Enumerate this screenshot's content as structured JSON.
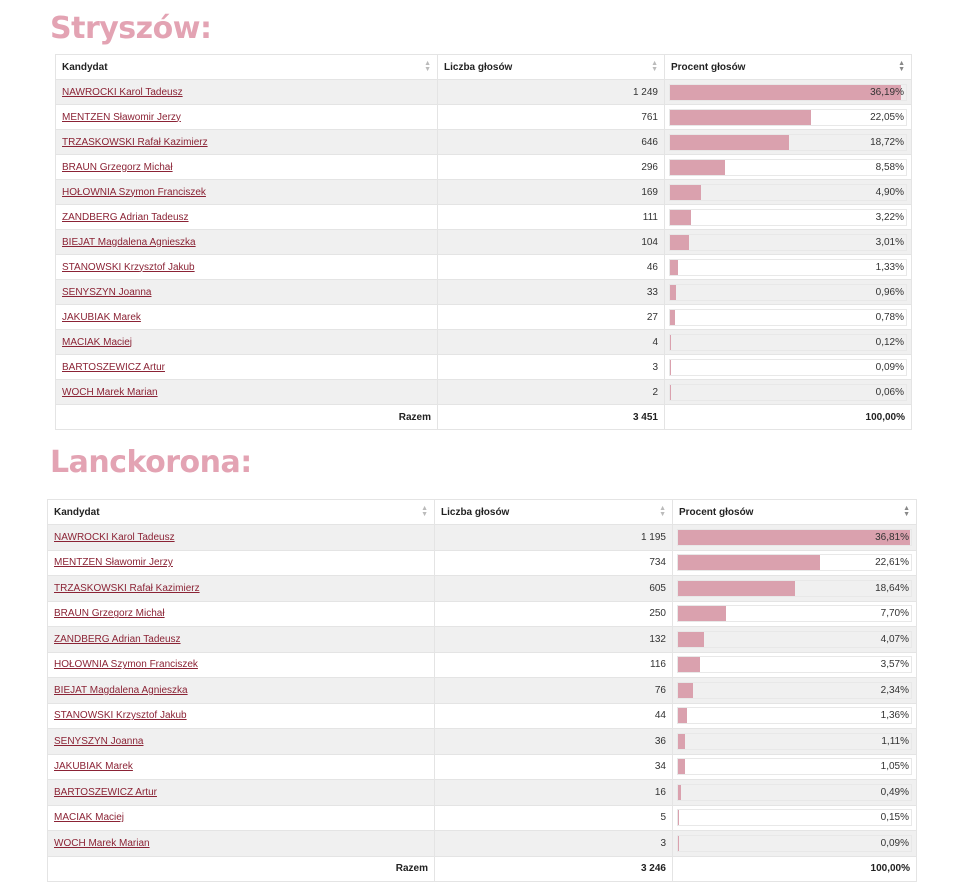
{
  "accent_color": "#e3a3b3",
  "bar_color": "#daa1ae",
  "columns": [
    "Kandydat",
    "Liczba głosów",
    "Procent głosów"
  ],
  "total_label": "Razem",
  "sections": [
    {
      "title": "Stryszów:",
      "rows": [
        {
          "name": "NAWROCKI Karol Tadeusz",
          "votes": "1 249",
          "percent": "36,19%",
          "value": 36.19
        },
        {
          "name": "MENTZEN Sławomir Jerzy",
          "votes": "761",
          "percent": "22,05%",
          "value": 22.05
        },
        {
          "name": "TRZASKOWSKI Rafał Kazimierz",
          "votes": "646",
          "percent": "18,72%",
          "value": 18.72
        },
        {
          "name": "BRAUN Grzegorz Michał",
          "votes": "296",
          "percent": "8,58%",
          "value": 8.58
        },
        {
          "name": "HOŁOWNIA Szymon Franciszek",
          "votes": "169",
          "percent": "4,90%",
          "value": 4.9
        },
        {
          "name": "ZANDBERG Adrian Tadeusz",
          "votes": "111",
          "percent": "3,22%",
          "value": 3.22
        },
        {
          "name": "BIEJAT Magdalena Agnieszka",
          "votes": "104",
          "percent": "3,01%",
          "value": 3.01
        },
        {
          "name": "STANOWSKI Krzysztof Jakub",
          "votes": "46",
          "percent": "1,33%",
          "value": 1.33
        },
        {
          "name": "SENYSZYN Joanna",
          "votes": "33",
          "percent": "0,96%",
          "value": 0.96
        },
        {
          "name": "JAKUBIAK Marek",
          "votes": "27",
          "percent": "0,78%",
          "value": 0.78
        },
        {
          "name": "MACIAK Maciej",
          "votes": "4",
          "percent": "0,12%",
          "value": 0.12
        },
        {
          "name": "BARTOSZEWICZ Artur",
          "votes": "3",
          "percent": "0,09%",
          "value": 0.09
        },
        {
          "name": "WOCH Marek Marian",
          "votes": "2",
          "percent": "0,06%",
          "value": 0.06
        }
      ],
      "total_votes": "3 451",
      "total_percent": "100,00%"
    },
    {
      "title": "Lanckorona:",
      "rows": [
        {
          "name": "NAWROCKI Karol Tadeusz",
          "votes": "1 195",
          "percent": "36,81%",
          "value": 36.81
        },
        {
          "name": "MENTZEN Sławomir Jerzy",
          "votes": "734",
          "percent": "22,61%",
          "value": 22.61
        },
        {
          "name": "TRZASKOWSKI Rafał Kazimierz",
          "votes": "605",
          "percent": "18,64%",
          "value": 18.64
        },
        {
          "name": "BRAUN Grzegorz Michał",
          "votes": "250",
          "percent": "7,70%",
          "value": 7.7
        },
        {
          "name": "ZANDBERG Adrian Tadeusz",
          "votes": "132",
          "percent": "4,07%",
          "value": 4.07
        },
        {
          "name": "HOŁOWNIA Szymon Franciszek",
          "votes": "116",
          "percent": "3,57%",
          "value": 3.57
        },
        {
          "name": "BIEJAT Magdalena Agnieszka",
          "votes": "76",
          "percent": "2,34%",
          "value": 2.34
        },
        {
          "name": "STANOWSKI Krzysztof Jakub",
          "votes": "44",
          "percent": "1,36%",
          "value": 1.36
        },
        {
          "name": "SENYSZYN Joanna",
          "votes": "36",
          "percent": "1,11%",
          "value": 1.11
        },
        {
          "name": "JAKUBIAK Marek",
          "votes": "34",
          "percent": "1,05%",
          "value": 1.05
        },
        {
          "name": "BARTOSZEWICZ Artur",
          "votes": "16",
          "percent": "0,49%",
          "value": 0.49
        },
        {
          "name": "MACIAK Maciej",
          "votes": "5",
          "percent": "0,15%",
          "value": 0.15
        },
        {
          "name": "WOCH Marek Marian",
          "votes": "3",
          "percent": "0,09%",
          "value": 0.09
        }
      ],
      "total_votes": "3 246",
      "total_percent": "100,00%"
    }
  ]
}
